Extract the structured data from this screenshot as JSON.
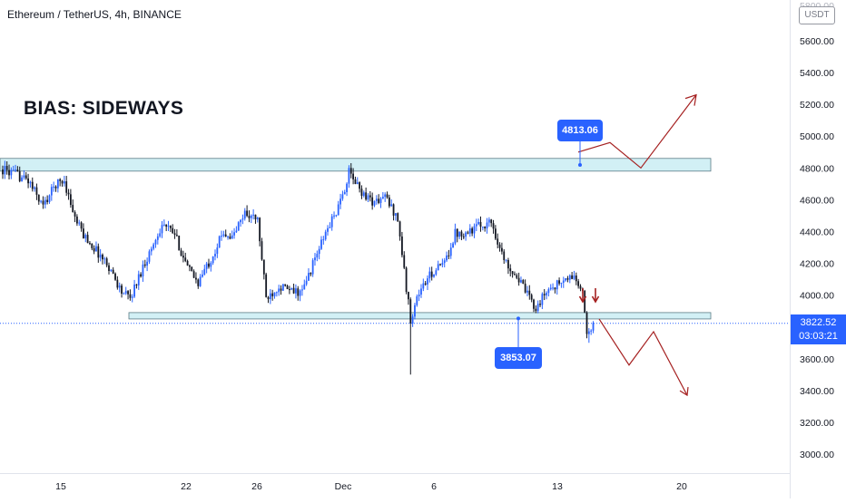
{
  "header": {
    "symbol_title": "Ethereum / TetherUS, 4h, BINANCE",
    "currency": "USDT"
  },
  "annotations": {
    "bias": "BIAS: SIDEWAYS",
    "upper_callout": "4813.06",
    "lower_callout": "3853.07"
  },
  "current_price": {
    "value": "3822.52",
    "countdown": "03:03:21"
  },
  "colors": {
    "bull": "#2962ff",
    "bear": "#131722",
    "zone_fill": "#d2f0f5",
    "zone_stroke": "#5b7b86",
    "projection": "#a52020",
    "callout": "#2962ff",
    "grid": "#e0e3eb"
  },
  "chart_data": {
    "type": "candlestick",
    "symbol": "Ethereum / TetherUS",
    "timeframe": "4h",
    "exchange": "BINANCE",
    "y_axis": {
      "min": 2900,
      "max": 5700,
      "ticks": [
        "5600.00",
        "5400.00",
        "5200.00",
        "5000.00",
        "4800.00",
        "4600.00",
        "4400.00",
        "4200.00",
        "4000.00",
        "3800.00",
        "3600.00",
        "3400.00",
        "3200.00",
        "3000.00"
      ]
    },
    "x_axis": {
      "ticks": [
        "15",
        "22",
        "26",
        "Dec",
        "6",
        "13",
        "20"
      ]
    },
    "series_path_knots": [
      [
        0,
        4790
      ],
      [
        6,
        4760
      ],
      [
        12,
        4720
      ],
      [
        19,
        4560
      ],
      [
        25,
        4700
      ],
      [
        29,
        4720
      ],
      [
        34,
        4480
      ],
      [
        38,
        4380
      ],
      [
        44,
        4280
      ],
      [
        50,
        4180
      ],
      [
        56,
        4020
      ],
      [
        60,
        3980
      ],
      [
        66,
        4180
      ],
      [
        71,
        4320
      ],
      [
        75,
        4450
      ],
      [
        81,
        4380
      ],
      [
        87,
        4170
      ],
      [
        92,
        4080
      ],
      [
        98,
        4230
      ],
      [
        104,
        4400
      ],
      [
        108,
        4360
      ],
      [
        114,
        4520
      ],
      [
        120,
        4470
      ],
      [
        124,
        3980
      ],
      [
        130,
        4060
      ],
      [
        136,
        4020
      ],
      [
        141,
        4020
      ],
      [
        147,
        4230
      ],
      [
        153,
        4420
      ],
      [
        159,
        4580
      ],
      [
        163,
        4770
      ],
      [
        169,
        4650
      ],
      [
        175,
        4580
      ],
      [
        180,
        4620
      ],
      [
        186,
        4480
      ],
      [
        190,
        4040
      ],
      [
        192,
        3850
      ],
      [
        196,
        4020
      ],
      [
        202,
        4140
      ],
      [
        208,
        4200
      ],
      [
        213,
        4390
      ],
      [
        219,
        4400
      ],
      [
        225,
        4440
      ],
      [
        230,
        4460
      ],
      [
        236,
        4220
      ],
      [
        242,
        4120
      ],
      [
        247,
        4000
      ],
      [
        251,
        3920
      ],
      [
        257,
        4040
      ],
      [
        263,
        4080
      ],
      [
        269,
        4120
      ],
      [
        273,
        4000
      ],
      [
        275,
        3760
      ],
      [
        278,
        3830
      ]
    ],
    "series_notes": "close prices of the 4h candles read off the plot",
    "candle_count": 279,
    "current_price": 3822.52,
    "zones": [
      {
        "label": "resistance",
        "low": 4780,
        "high": 4860
      },
      {
        "label": "support",
        "low": 3850,
        "high": 3890
      }
    ],
    "callouts": [
      4813.06,
      3853.07
    ],
    "projection_upper_path": [
      4900,
      4960,
      4800,
      5260
    ],
    "projection_lower_path": [
      3850,
      3560,
      3770,
      3370
    ],
    "annotations": [
      "BIAS: SIDEWAYS"
    ]
  }
}
